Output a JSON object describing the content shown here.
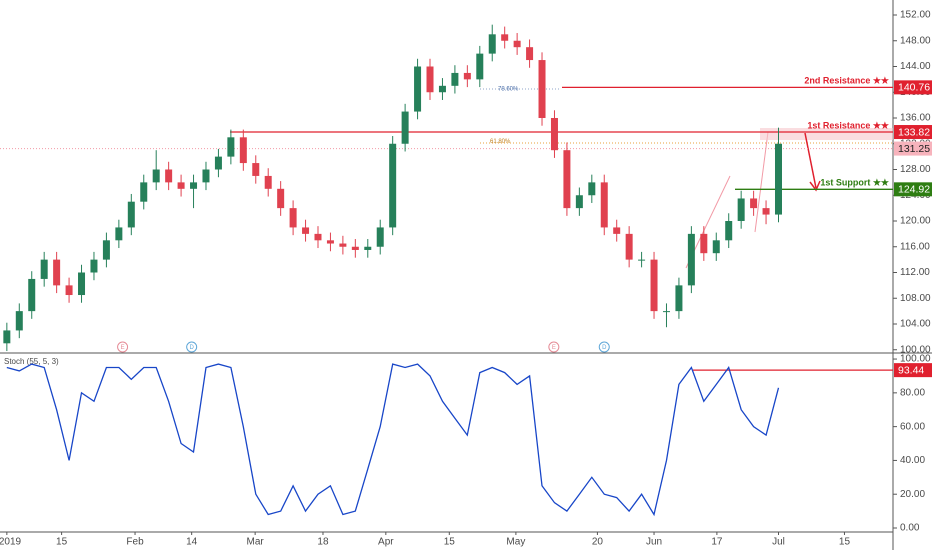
{
  "chart_data": [
    {
      "type": "candlestick",
      "x": [
        0,
        2,
        4,
        6,
        8,
        10,
        12,
        14,
        16,
        18,
        20,
        22,
        24,
        26,
        28,
        30,
        32,
        34,
        36,
        38,
        40,
        42,
        44,
        46,
        48,
        50,
        52,
        54,
        56,
        58,
        60,
        62,
        64,
        66,
        68,
        70,
        72,
        74,
        76,
        78,
        80,
        82,
        84,
        86,
        88,
        90,
        92,
        94,
        96,
        98,
        100,
        102,
        104,
        106,
        108,
        110,
        112,
        114,
        116,
        118,
        120,
        122,
        124
      ],
      "open": [
        101,
        103,
        106,
        111,
        114,
        110,
        108.5,
        112,
        114,
        117,
        119,
        123,
        126,
        128,
        126,
        125,
        126,
        128,
        130,
        133,
        129,
        127,
        125,
        122,
        119,
        118,
        117,
        116.5,
        116,
        115.5,
        116,
        119,
        132,
        137,
        144,
        140,
        141,
        143,
        142,
        146,
        149,
        148,
        147,
        145,
        136,
        131,
        122,
        124,
        126,
        119,
        118,
        114,
        114,
        106,
        106,
        110,
        118,
        115,
        117,
        120,
        123.5,
        122,
        121
      ],
      "high": [
        104.2,
        107.2,
        112.2,
        115.2,
        115.2,
        111.2,
        113.2,
        115.2,
        118.2,
        120.2,
        124.2,
        127.2,
        131,
        129.2,
        127.2,
        127.2,
        129.2,
        131.2,
        134.2,
        134.2,
        130.2,
        128.2,
        126.2,
        123.2,
        120.2,
        119.2,
        118.2,
        117.7,
        117.2,
        117.2,
        120.2,
        133.2,
        138.2,
        145.2,
        145.2,
        142.2,
        144.2,
        144.2,
        147.2,
        150.5,
        150.2,
        149.2,
        148.2,
        146.2,
        137.2,
        132.2,
        125.2,
        127.2,
        127.2,
        120.2,
        119.2,
        115.2,
        115.2,
        107.2,
        111.2,
        119.2,
        119.2,
        118.2,
        121.2,
        124.7,
        124.7,
        123.2,
        134.5
      ],
      "low": [
        99.8,
        101.8,
        104.8,
        109.8,
        108.8,
        107.3,
        107.3,
        110.8,
        112.8,
        115.8,
        117.8,
        121.8,
        124.8,
        124.8,
        123.8,
        122,
        124.8,
        126.8,
        128.8,
        127.8,
        125.8,
        123.8,
        120.8,
        117.8,
        116.8,
        115.8,
        115.3,
        114.8,
        114.3,
        114.3,
        114.8,
        117.8,
        130.8,
        135.8,
        138.8,
        138.8,
        139.8,
        140.8,
        140.8,
        144.8,
        146.8,
        145.8,
        143.8,
        134.8,
        129.8,
        120.8,
        120.8,
        122.8,
        117.8,
        116.8,
        112.8,
        112.8,
        104.8,
        103.5,
        104.8,
        108.8,
        113.8,
        113.8,
        115.8,
        118.8,
        120.8,
        119.5,
        119.8
      ],
      "close": [
        103,
        106,
        111,
        114,
        110,
        108.5,
        112,
        114,
        117,
        119,
        123,
        126,
        128,
        126,
        125,
        126,
        128,
        130,
        133,
        129,
        127,
        125,
        122,
        119,
        118,
        117,
        116.5,
        116,
        115.5,
        116,
        119,
        132,
        137,
        144,
        140,
        141,
        143,
        142,
        146,
        149,
        148,
        147,
        145,
        136,
        131,
        122,
        124,
        126,
        119,
        118,
        114,
        114,
        106,
        106,
        110,
        118,
        115,
        117,
        120,
        123.5,
        122,
        121,
        132
      ],
      "up_color": "#26805a",
      "down_color": "#e0414f",
      "xlim": [
        -1.1,
        142.4
      ],
      "ylim": [
        99.65,
        154.33
      ],
      "yticks": [
        {
          "value": 100,
          "label": "100.00"
        },
        {
          "value": 104,
          "label": "104.00"
        },
        {
          "value": 108,
          "label": "108.00"
        },
        {
          "value": 112,
          "label": "112.00"
        },
        {
          "value": 116,
          "label": "116.00"
        },
        {
          "value": 120,
          "label": "120.00"
        },
        {
          "value": 124,
          "label": "124.00"
        },
        {
          "value": 128,
          "label": "128.00"
        },
        {
          "value": 132,
          "label": "132.00"
        },
        {
          "value": 136,
          "label": "136.00"
        },
        {
          "value": 140,
          "label": "140.00"
        },
        {
          "value": 144,
          "label": "144.00"
        },
        {
          "value": 148,
          "label": "148.00"
        },
        {
          "value": 152,
          "label": "152.00"
        }
      ],
      "levels": [
        {
          "label": "2nd Resistance ★★",
          "value": 140.76,
          "color": "#e0202e"
        },
        {
          "label": "1st Resistance ★★",
          "value": 133.82,
          "color": "#e0202e"
        },
        {
          "label": "1st Support ★★",
          "value": 124.92,
          "color": "#2e7d12"
        }
      ],
      "last_price": 131.25,
      "fib_labels": [
        {
          "label": "78.60%",
          "value": 140.5
        },
        {
          "label": "61.80%",
          "value": 132.4
        }
      ],
      "events": [
        {
          "label": "E",
          "x": 18.6
        },
        {
          "label": "D",
          "x": 29.7
        },
        {
          "label": "E",
          "x": 87.9
        },
        {
          "label": "D",
          "x": 96
        }
      ]
    },
    {
      "type": "line",
      "title": "Stoch (55, 5, 3)",
      "x": [
        0,
        2,
        4,
        6,
        8,
        10,
        12,
        14,
        16,
        18,
        20,
        22,
        24,
        26,
        28,
        30,
        32,
        34,
        36,
        38,
        40,
        42,
        44,
        46,
        48,
        50,
        52,
        54,
        56,
        58,
        60,
        62,
        64,
        66,
        68,
        70,
        72,
        74,
        76,
        78,
        80,
        82,
        84,
        86,
        88,
        90,
        92,
        94,
        96,
        98,
        100,
        102,
        104,
        106,
        108,
        110,
        112,
        114,
        116,
        118,
        120,
        122,
        124
      ],
      "values": [
        95,
        93,
        97,
        95,
        70,
        40,
        80,
        75,
        95,
        95,
        88,
        95,
        95,
        75,
        50,
        45,
        95,
        97,
        95,
        60,
        20,
        8,
        10,
        25,
        10,
        20,
        25,
        8,
        10,
        35,
        60,
        97,
        95,
        97,
        90,
        75,
        65,
        55,
        92,
        95,
        92,
        85,
        90,
        25,
        15,
        10,
        20,
        30,
        20,
        18,
        10,
        20,
        8,
        40,
        85,
        95,
        75,
        85,
        95,
        70,
        60,
        55,
        83
      ],
      "color": "#1846c8",
      "level": 93.44,
      "xlim": [
        -1.1,
        142.4
      ],
      "ylim": [
        -7.1,
        102.4
      ],
      "yticks": [
        {
          "value": 0,
          "label": "0.00"
        },
        {
          "value": 20,
          "label": "20.00"
        },
        {
          "value": 40,
          "label": "40.00"
        },
        {
          "value": 60,
          "label": "60.00"
        },
        {
          "value": 80,
          "label": "80.00"
        },
        {
          "value": 100,
          "label": "100.00"
        }
      ],
      "xticks": [
        {
          "value": 0,
          "label": "2019"
        },
        {
          "value": 8.8,
          "label": "15"
        },
        {
          "value": 20.6,
          "label": "Feb"
        },
        {
          "value": 29.7,
          "label": "14"
        },
        {
          "value": 39.9,
          "label": "Mar"
        },
        {
          "value": 50.8,
          "label": "18"
        },
        {
          "value": 60.9,
          "label": "Apr"
        },
        {
          "value": 71.1,
          "label": "15"
        },
        {
          "value": 81.8,
          "label": "May"
        },
        {
          "value": 94.9,
          "label": "20"
        },
        {
          "value": 104,
          "label": "Jun"
        },
        {
          "value": 114.1,
          "label": "17"
        },
        {
          "value": 124,
          "label": "Jul"
        },
        {
          "value": 134.6,
          "label": "15"
        }
      ]
    }
  ]
}
